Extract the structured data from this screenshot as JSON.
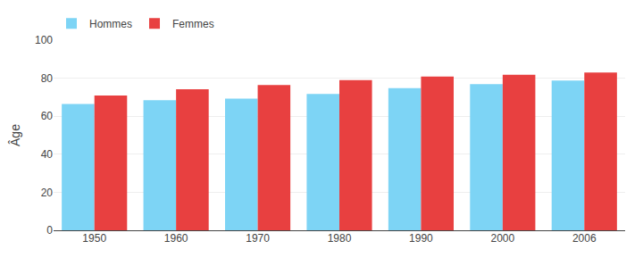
{
  "chart_data": {
    "type": "bar",
    "ylabel": "Âge",
    "categories": [
      "1950",
      "1960",
      "1970",
      "1980",
      "1990",
      "2000",
      "2006"
    ],
    "series": [
      {
        "name": "Hommes",
        "color": "#7dd4f5",
        "values": [
          66.4,
          68.4,
          69.3,
          71.7,
          74.8,
          76.9,
          78.8
        ]
      },
      {
        "name": "Femmes",
        "color": "#e84040",
        "values": [
          70.9,
          74.2,
          76.4,
          79.0,
          80.9,
          81.8,
          83.0
        ]
      }
    ],
    "ylim": [
      0,
      100
    ],
    "yticks": [
      0,
      20,
      40,
      60,
      80,
      100
    ],
    "grid": true,
    "legend": "upper left"
  }
}
